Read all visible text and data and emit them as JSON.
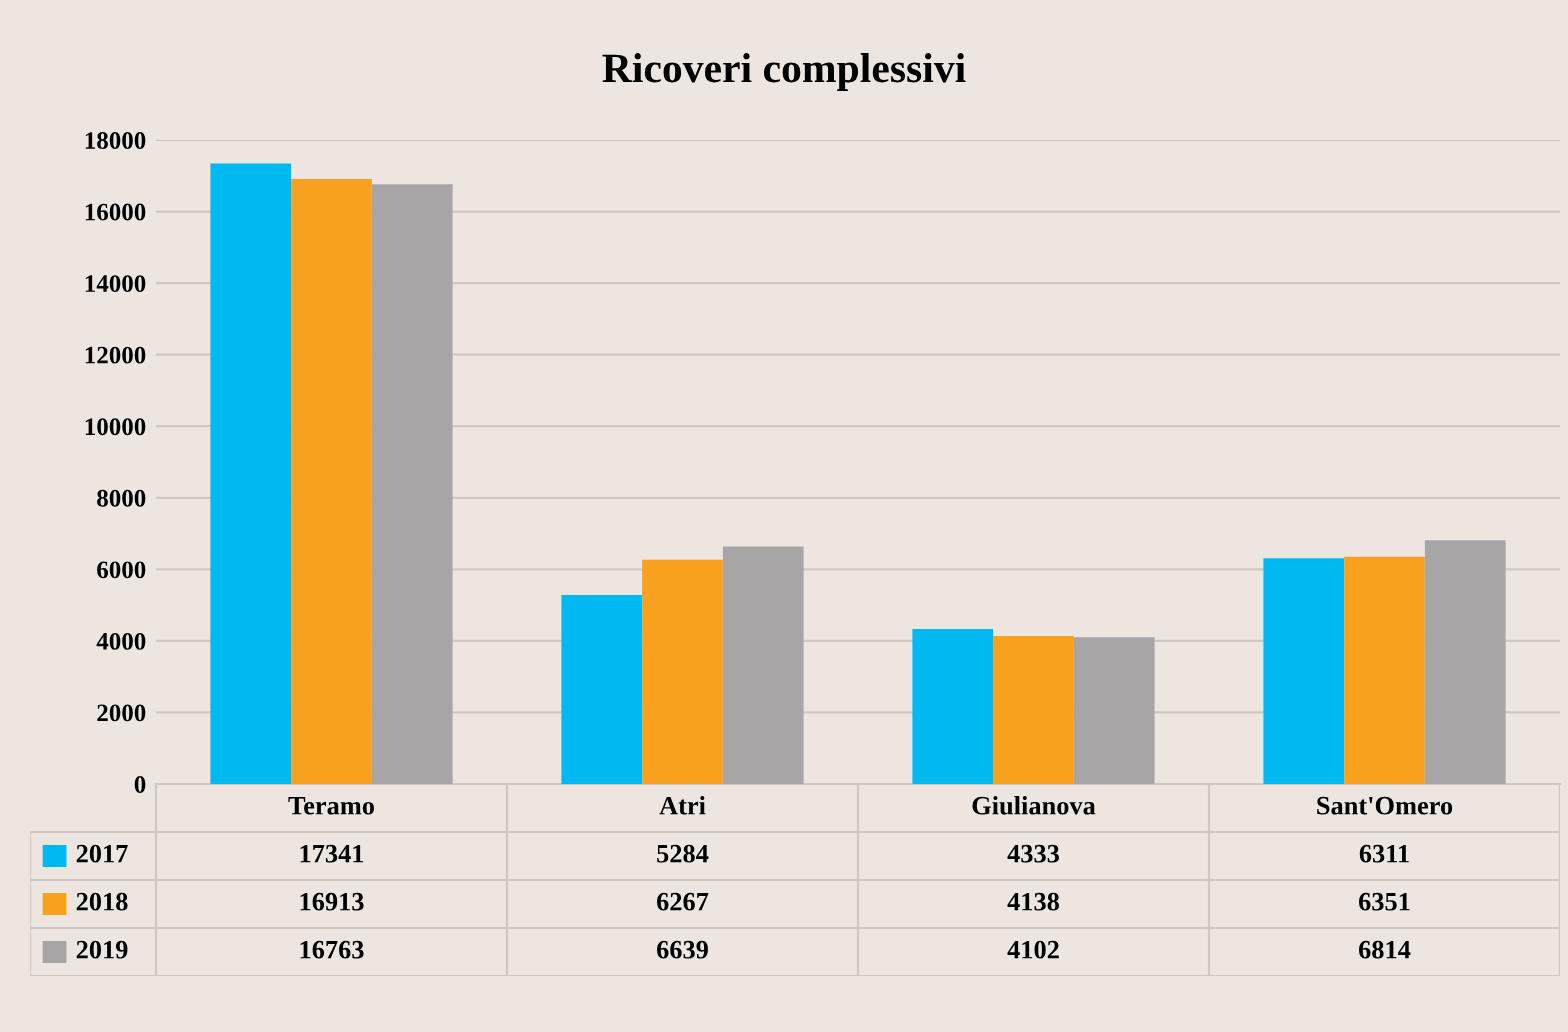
{
  "chart_data": {
    "type": "bar",
    "title": "Ricoveri complessivi",
    "categories": [
      "Teramo",
      "Atri",
      "Giulianova",
      "Sant'Omero"
    ],
    "series": [
      {
        "name": "2017",
        "color": "#00b9f1",
        "values": [
          17341,
          5284,
          4333,
          6311
        ]
      },
      {
        "name": "2018",
        "color": "#f7a11e",
        "values": [
          16913,
          6267,
          4138,
          6351
        ]
      },
      {
        "name": "2019",
        "color": "#a7a5a6",
        "values": [
          16763,
          6639,
          4102,
          6814
        ]
      }
    ],
    "ylim": [
      0,
      18000
    ],
    "yticks": [
      0,
      2000,
      4000,
      6000,
      8000,
      10000,
      12000,
      14000,
      16000,
      18000
    ],
    "grid": "y",
    "legend": "bottom",
    "data_labels": true
  }
}
